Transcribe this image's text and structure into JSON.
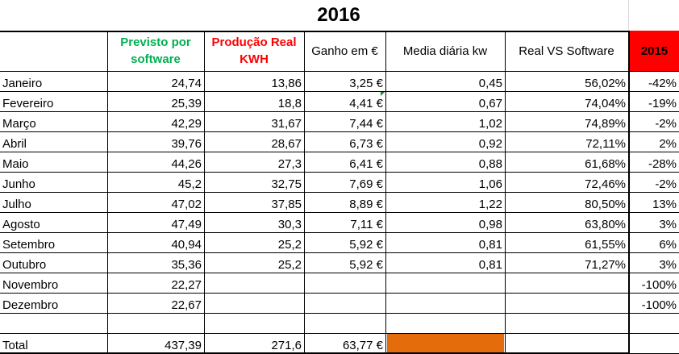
{
  "title": "2016",
  "headers": {
    "previsto": "Previsto por software",
    "producao": "Produção Real KWH",
    "ganho": "Ganho em €",
    "media": "Media diária  kw",
    "real_vs": "Real VS Software",
    "year_prev": "2015"
  },
  "colors": {
    "previsto_header": "#00b050",
    "producao_header": "#ff0000",
    "year_header_bg": "#ff0000",
    "total_highlight": "#e46c0a"
  },
  "rows": [
    {
      "month": "Janeiro",
      "previsto": "24,74",
      "producao": "13,86",
      "ganho": "3,25 €",
      "media": "0,45",
      "real_vs": "56,02%",
      "y2015": "-42%"
    },
    {
      "month": "Fevereiro",
      "previsto": "25,39",
      "producao": "18,8",
      "ganho": "4,41 €",
      "media": "0,67",
      "real_vs": "74,04%",
      "y2015": "-19%"
    },
    {
      "month": "Março",
      "previsto": "42,29",
      "producao": "31,67",
      "ganho": "7,44 €",
      "media": "1,02",
      "real_vs": "74,89%",
      "y2015": "-2%"
    },
    {
      "month": "Abril",
      "previsto": "39,76",
      "producao": "28,67",
      "ganho": "6,73 €",
      "media": "0,92",
      "real_vs": "72,11%",
      "y2015": "2%"
    },
    {
      "month": "Maio",
      "previsto": "44,26",
      "producao": "27,3",
      "ganho": "6,41 €",
      "media": "0,88",
      "real_vs": "61,68%",
      "y2015": "-28%"
    },
    {
      "month": "Junho",
      "previsto": "45,2",
      "producao": "32,75",
      "ganho": "7,69 €",
      "media": "1,06",
      "real_vs": "72,46%",
      "y2015": "-2%"
    },
    {
      "month": "Julho",
      "previsto": "47,02",
      "producao": "37,85",
      "ganho": "8,89 €",
      "media": "1,22",
      "real_vs": "80,50%",
      "y2015": "13%"
    },
    {
      "month": "Agosto",
      "previsto": "47,49",
      "producao": "30,3",
      "ganho": "7,11 €",
      "media": "0,98",
      "real_vs": "63,80%",
      "y2015": "3%"
    },
    {
      "month": "Setembro",
      "previsto": "40,94",
      "producao": "25,2",
      "ganho": "5,92 €",
      "media": "0,81",
      "real_vs": "61,55%",
      "y2015": "6%"
    },
    {
      "month": "Outubro",
      "previsto": "35,36",
      "producao": "25,2",
      "ganho": "5,92 €",
      "media": "0,81",
      "real_vs": "71,27%",
      "y2015": "3%"
    },
    {
      "month": "Novembro",
      "previsto": "22,27",
      "producao": "",
      "ganho": "",
      "media": "",
      "real_vs": "",
      "y2015": "-100%"
    },
    {
      "month": "Dezembro",
      "previsto": "22,67",
      "producao": "",
      "ganho": "",
      "media": "",
      "real_vs": "",
      "y2015": "-100%"
    }
  ],
  "total": {
    "label": "Total",
    "previsto": "437,39",
    "producao": "271,6",
    "ganho": "63,77 €"
  }
}
